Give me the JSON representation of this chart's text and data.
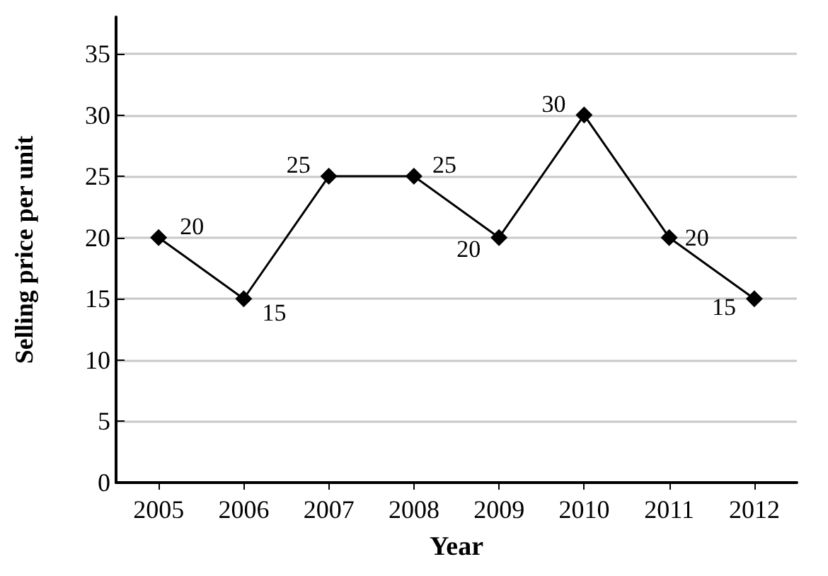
{
  "chart_data": {
    "type": "line",
    "xlabel": "Year",
    "ylabel": "Selling price per unit",
    "categories": [
      "2005",
      "2006",
      "2007",
      "2008",
      "2009",
      "2010",
      "2011",
      "2012"
    ],
    "values": [
      20,
      15,
      25,
      25,
      20,
      30,
      20,
      15
    ],
    "color": "#000000",
    "ylim": [
      0,
      38
    ],
    "yticks": [
      0,
      5,
      10,
      15,
      20,
      25,
      30,
      35
    ],
    "grid": "y",
    "marker": "diamond",
    "line_style": "solid",
    "data_labels": true
  }
}
